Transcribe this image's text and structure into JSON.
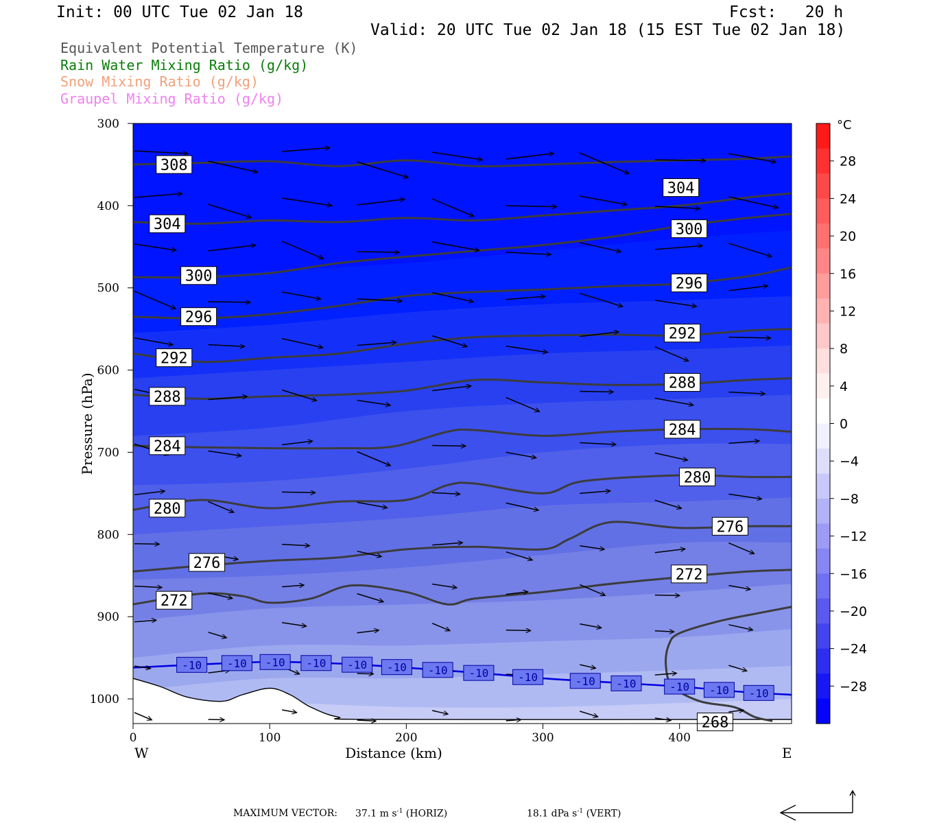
{
  "header": {
    "init": "Init: 00 UTC Tue 02 Jan 18",
    "fcst": "Fcst:   20 h",
    "valid": "Valid: 20 UTC Tue 02 Jan 18 (15 EST Tue 02 Jan 18)"
  },
  "fields": [
    {
      "label": "Equivalent Potential Temperature (K)",
      "color": "#555555"
    },
    {
      "label": "Rain Water Mixing Ratio (g/kg)",
      "color": "#0a7d0a"
    },
    {
      "label": "Snow Mixing Ratio (g/kg)",
      "color": "#f2a07a"
    },
    {
      "label": "Graupel Mixing Ratio (g/kg)",
      "color": "#f080f0"
    }
  ],
  "footer": {
    "max_vector_label": "MAXIMUM VECTOR:",
    "horiz_value": "37.1 m s",
    "horiz_exp": "-1",
    "horiz_suffix": " (HORIZ)",
    "vert_value": "18.1 dPa s",
    "vert_exp": "-1",
    "vert_suffix": " (VERT)"
  },
  "chart_data": {
    "type": "cross-section",
    "xlabel": "Distance (km)",
    "ylabel": "Pressure (hPa)",
    "x_ticks": [
      0,
      100,
      200,
      300,
      400
    ],
    "y_ticks": [
      300,
      400,
      500,
      600,
      700,
      800,
      900,
      1000
    ],
    "xlim": [
      0,
      482
    ],
    "ylim": [
      300,
      1030
    ],
    "y_reversed": true,
    "left_end_label": "W",
    "right_end_label": "E",
    "colorbar": {
      "unit": "°C",
      "labels": [
        28,
        24,
        20,
        16,
        12,
        8,
        4,
        0,
        -4,
        -8,
        -12,
        -16,
        -20,
        -24,
        -28
      ],
      "range": [
        -32,
        32
      ]
    },
    "theta_e_contours": [
      {
        "value": 308,
        "points": [
          [
            0,
            350
          ],
          [
            50,
            348
          ],
          [
            100,
            346
          ],
          [
            150,
            352
          ],
          [
            200,
            345
          ],
          [
            250,
            352
          ],
          [
            300,
            350
          ],
          [
            350,
            347
          ],
          [
            400,
            345
          ],
          [
            450,
            343
          ],
          [
            482,
            340
          ]
        ]
      },
      {
        "value": 304,
        "points": [
          [
            0,
            420
          ],
          [
            50,
            422
          ],
          [
            100,
            418
          ],
          [
            150,
            420
          ],
          [
            200,
            415
          ],
          [
            250,
            418
          ],
          [
            300,
            412
          ],
          [
            350,
            406
          ],
          [
            400,
            400
          ],
          [
            450,
            390
          ],
          [
            482,
            385
          ]
        ]
      },
      {
        "value": 300,
        "points": [
          [
            0,
            487
          ],
          [
            50,
            487
          ],
          [
            100,
            482
          ],
          [
            150,
            470
          ],
          [
            200,
            462
          ],
          [
            250,
            455
          ],
          [
            300,
            448
          ],
          [
            350,
            438
          ],
          [
            400,
            425
          ],
          [
            450,
            415
          ],
          [
            482,
            410
          ]
        ]
      },
      {
        "value": 296,
        "points": [
          [
            0,
            535
          ],
          [
            50,
            537
          ],
          [
            100,
            532
          ],
          [
            150,
            522
          ],
          [
            200,
            510
          ],
          [
            250,
            505
          ],
          [
            300,
            502
          ],
          [
            350,
            498
          ],
          [
            400,
            495
          ],
          [
            450,
            486
          ],
          [
            482,
            475
          ]
        ]
      },
      {
        "value": 292,
        "points": [
          [
            0,
            580
          ],
          [
            50,
            590
          ],
          [
            100,
            585
          ],
          [
            150,
            580
          ],
          [
            200,
            568
          ],
          [
            250,
            560
          ],
          [
            300,
            558
          ],
          [
            350,
            557
          ],
          [
            400,
            558
          ],
          [
            450,
            552
          ],
          [
            482,
            550
          ]
        ]
      },
      {
        "value": 288,
        "points": [
          [
            0,
            630
          ],
          [
            50,
            635
          ],
          [
            100,
            632
          ],
          [
            150,
            630
          ],
          [
            200,
            625
          ],
          [
            250,
            612
          ],
          [
            300,
            615
          ],
          [
            350,
            618
          ],
          [
            400,
            617
          ],
          [
            450,
            612
          ],
          [
            482,
            610
          ]
        ]
      },
      {
        "value": 284,
        "points": [
          [
            0,
            692
          ],
          [
            50,
            694
          ],
          [
            100,
            695
          ],
          [
            150,
            695
          ],
          [
            190,
            693
          ],
          [
            230,
            675
          ],
          [
            250,
            673
          ],
          [
            300,
            680
          ],
          [
            350,
            675
          ],
          [
            400,
            672
          ],
          [
            450,
            672
          ],
          [
            482,
            675
          ]
        ]
      },
      {
        "value": 280,
        "points": [
          [
            0,
            770
          ],
          [
            50,
            758
          ],
          [
            100,
            768
          ],
          [
            150,
            760
          ],
          [
            200,
            758
          ],
          [
            230,
            740
          ],
          [
            250,
            738
          ],
          [
            300,
            750
          ],
          [
            330,
            735
          ],
          [
            400,
            728
          ],
          [
            450,
            730
          ],
          [
            482,
            730
          ]
        ]
      },
      {
        "value": 276,
        "points": [
          [
            0,
            845
          ],
          [
            50,
            838
          ],
          [
            100,
            832
          ],
          [
            150,
            828
          ],
          [
            200,
            818
          ],
          [
            250,
            815
          ],
          [
            300,
            818
          ],
          [
            320,
            805
          ],
          [
            350,
            785
          ],
          [
            400,
            792
          ],
          [
            450,
            790
          ],
          [
            482,
            790
          ]
        ]
      },
      {
        "value": 272,
        "points": [
          [
            0,
            885
          ],
          [
            50,
            872
          ],
          [
            80,
            875
          ],
          [
            100,
            883
          ],
          [
            130,
            878
          ],
          [
            160,
            862
          ],
          [
            200,
            870
          ],
          [
            230,
            885
          ],
          [
            250,
            878
          ],
          [
            300,
            870
          ],
          [
            350,
            860
          ],
          [
            400,
            852
          ],
          [
            450,
            845
          ],
          [
            482,
            843
          ]
        ]
      },
      {
        "value": 268,
        "points": [
          [
            468,
            1027
          ],
          [
            455,
            1022
          ],
          [
            440,
            1010
          ],
          [
            415,
            1003
          ],
          [
            395,
            985
          ],
          [
            390,
            960
          ],
          [
            392,
            935
          ],
          [
            400,
            920
          ],
          [
            430,
            905
          ],
          [
            460,
            895
          ],
          [
            482,
            888
          ]
        ]
      }
    ],
    "temp_contour_neg10": {
      "value": -10,
      "points": [
        [
          0,
          962
        ],
        [
          50,
          958
        ],
        [
          100,
          955
        ],
        [
          150,
          957
        ],
        [
          200,
          962
        ],
        [
          250,
          968
        ],
        [
          300,
          975
        ],
        [
          350,
          980
        ],
        [
          400,
          985
        ],
        [
          450,
          992
        ],
        [
          482,
          995
        ]
      ],
      "label_at_km": [
        43,
        76,
        104,
        134,
        164,
        193,
        223,
        253,
        289,
        331,
        361,
        400,
        429,
        458
      ]
    },
    "terrain_top": [
      [
        0,
        975
      ],
      [
        20,
        985
      ],
      [
        40,
        998
      ],
      [
        65,
        1003
      ],
      [
        80,
        995
      ],
      [
        100,
        987
      ],
      [
        115,
        995
      ],
      [
        130,
        1010
      ],
      [
        150,
        1022
      ],
      [
        180,
        1025
      ],
      [
        482,
        1025
      ]
    ],
    "temp_shading_bands": [
      {
        "color": "#0020ff",
        "points": [
          [
            0,
            490
          ],
          [
            100,
            480
          ],
          [
            200,
            470
          ],
          [
            300,
            455
          ],
          [
            400,
            440
          ],
          [
            482,
            430
          ]
        ]
      },
      {
        "color": "#1430f8",
        "points": [
          [
            0,
            555
          ],
          [
            100,
            545
          ],
          [
            200,
            530
          ],
          [
            300,
            520
          ],
          [
            400,
            515
          ],
          [
            482,
            510
          ]
        ]
      },
      {
        "color": "#2840f0",
        "points": [
          [
            0,
            610
          ],
          [
            100,
            600
          ],
          [
            200,
            590
          ],
          [
            300,
            580
          ],
          [
            400,
            575
          ],
          [
            482,
            570
          ]
        ]
      },
      {
        "color": "#3c50ee",
        "points": [
          [
            0,
            680
          ],
          [
            100,
            670
          ],
          [
            200,
            650
          ],
          [
            300,
            640
          ],
          [
            400,
            635
          ],
          [
            482,
            630
          ]
        ]
      },
      {
        "color": "#5060ea",
        "points": [
          [
            0,
            740
          ],
          [
            100,
            735
          ],
          [
            200,
            720
          ],
          [
            300,
            700
          ],
          [
            400,
            690
          ],
          [
            482,
            690
          ]
        ]
      },
      {
        "color": "#6270e6",
        "points": [
          [
            0,
            800
          ],
          [
            100,
            790
          ],
          [
            200,
            780
          ],
          [
            300,
            765
          ],
          [
            400,
            760
          ],
          [
            482,
            755
          ]
        ]
      },
      {
        "color": "#7480e6",
        "points": [
          [
            0,
            855
          ],
          [
            100,
            850
          ],
          [
            200,
            840
          ],
          [
            300,
            825
          ],
          [
            400,
            810
          ],
          [
            482,
            810
          ]
        ]
      },
      {
        "color": "#8894ea",
        "points": [
          [
            0,
            905
          ],
          [
            100,
            890
          ],
          [
            200,
            885
          ],
          [
            300,
            880
          ],
          [
            400,
            870
          ],
          [
            482,
            860
          ]
        ]
      },
      {
        "color": "#9ca8ee",
        "points": [
          [
            0,
            950
          ],
          [
            100,
            935
          ],
          [
            200,
            935
          ],
          [
            300,
            930
          ],
          [
            400,
            925
          ],
          [
            482,
            915
          ]
        ]
      },
      {
        "color": "#b0baf2",
        "points": [
          [
            0,
            990
          ],
          [
            100,
            975
          ],
          [
            200,
            975
          ],
          [
            300,
            970
          ],
          [
            400,
            965
          ],
          [
            482,
            960
          ]
        ]
      },
      {
        "color": "#c6ccf6",
        "points": [
          [
            0,
            1010
          ],
          [
            100,
            1005
          ],
          [
            200,
            1010
          ],
          [
            300,
            1010
          ],
          [
            400,
            1005
          ],
          [
            482,
            1000
          ]
        ]
      }
    ]
  }
}
